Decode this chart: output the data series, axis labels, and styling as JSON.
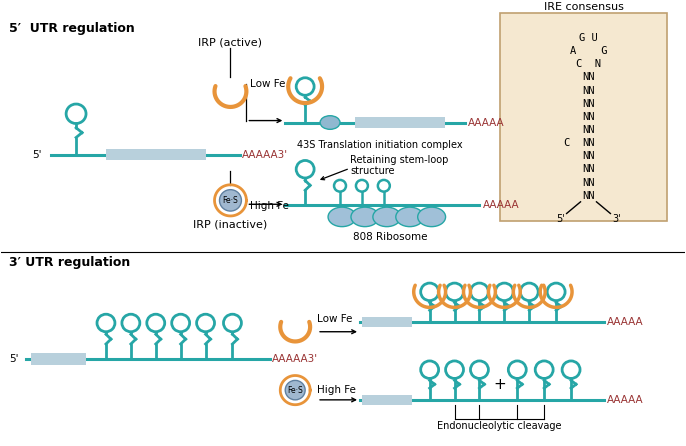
{
  "bg_color": "#ffffff",
  "teal": "#26a6a6",
  "orange": "#e8943a",
  "blue_light": "#b8d0dc",
  "blue_ribosome": "#8ab0cc",
  "ire_bg": "#f5e8d0",
  "ire_border": "#c8b090",
  "label_5utr": "5′  UTR regulation",
  "label_3utr": "3′ UTR regulation",
  "ire_title": "IRE consensus",
  "label_irp_active": "IRP (active)",
  "label_irp_inactive": "IRP (inactive)",
  "label_low_fe": "Low Fe",
  "label_high_fe": "High Fe",
  "label_43s": "43S Translation initiation complex",
  "label_stem_loop": "Retaining stem-loop\nstructure",
  "label_808": "808 Ribosome",
  "label_aaaaa": "AAAAA",
  "label_endo": "Endonucleolytic cleavage",
  "label_plus": "+"
}
